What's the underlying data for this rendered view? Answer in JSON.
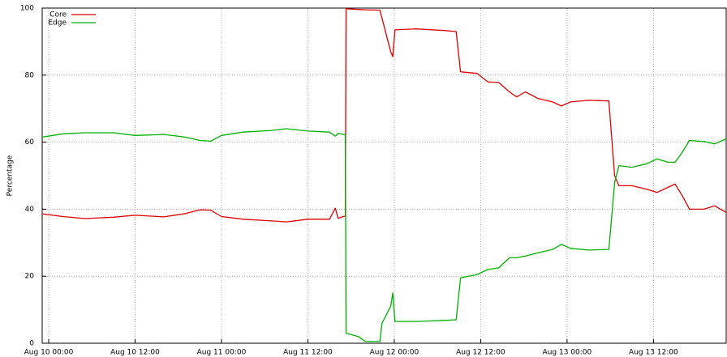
{
  "chart_data": {
    "type": "line",
    "ylabel": "Percentage",
    "x": [
      "Aug 9 23:06",
      "Aug 10 02:00",
      "Aug 10 05:00",
      "Aug 10 09:00",
      "Aug 10 12:00",
      "Aug 10 16:00",
      "Aug 10 19:00",
      "Aug 10 21:00",
      "Aug 10 22:30",
      "Aug 11 00:00",
      "Aug 11 03:00",
      "Aug 11 07:00",
      "Aug 11 09:00",
      "Aug 11 12:00",
      "Aug 11 15:00",
      "Aug 11 15:48",
      "Aug 11 16:12",
      "Aug 11 17:12",
      "Aug 11 17:18",
      "Aug 11 19:00",
      "Aug 11 20:00",
      "Aug 11 22:00",
      "Aug 11 22:18",
      "Aug 11 23:30",
      "Aug 11 23:48",
      "Aug 12 00:06",
      "Aug 12 03:00",
      "Aug 12 07:00",
      "Aug 12 08:36",
      "Aug 12 09:12",
      "Aug 12 11:30",
      "Aug 12 13:00",
      "Aug 12 14:30",
      "Aug 12 16:00",
      "Aug 12 17:00",
      "Aug 12 18:12",
      "Aug 12 20:00",
      "Aug 12 22:00",
      "Aug 12 23:12",
      "Aug 13 00:30",
      "Aug 13 03:00",
      "Aug 13 05:48",
      "Aug 13 06:36",
      "Aug 13 07:12",
      "Aug 13 09:00",
      "Aug 13 11:00",
      "Aug 13 12:30",
      "Aug 13 14:00",
      "Aug 13 15:00",
      "Aug 13 16:00",
      "Aug 13 17:00",
      "Aug 13 19:00",
      "Aug 13 20:30",
      "Aug 13 22:06"
    ],
    "series": [
      {
        "name": "Core",
        "color": "#e00000",
        "values": [
          38.6,
          37.8,
          37.2,
          37.6,
          38.2,
          37.7,
          38.7,
          39.8,
          39.7,
          37.8,
          37.0,
          36.5,
          36.2,
          37.0,
          37.0,
          40.3,
          37.3,
          38.0,
          99.8,
          99.6,
          99.5,
          99.4,
          97,
          87,
          85.5,
          93.5,
          93.8,
          93.3,
          93,
          81,
          80.5,
          78,
          77.8,
          75,
          73.5,
          75,
          73,
          72,
          70.8,
          72,
          72.5,
          72.3,
          50,
          47,
          47,
          46,
          45,
          46.5,
          47.5,
          44,
          40,
          40,
          41,
          39
        ]
      },
      {
        "name": "Edge",
        "color": "#00b000",
        "values": [
          61.5,
          62.5,
          62.8,
          62.8,
          62.0,
          62.3,
          61.5,
          60.5,
          60.3,
          62.0,
          63.0,
          63.5,
          64.0,
          63.3,
          63.0,
          61.8,
          62.6,
          62.2,
          3.0,
          2,
          0.5,
          0.5,
          6,
          11,
          15,
          6.5,
          6.5,
          6.8,
          7,
          19.5,
          20.5,
          22,
          22.5,
          25.5,
          25.5,
          26,
          27,
          28,
          29.5,
          28.3,
          27.8,
          28,
          48,
          53,
          52.5,
          53.5,
          55,
          54,
          54,
          57,
          60.5,
          60.2,
          59.5,
          61
        ]
      }
    ],
    "xlim": [
      "Aug 9 23:06",
      "Aug 13 22:06"
    ],
    "xticks": [
      "Aug 10 00:00",
      "Aug 10 12:00",
      "Aug 11 00:00",
      "Aug 11 12:00",
      "Aug 12 00:00",
      "Aug 12 12:00",
      "Aug 13 00:00",
      "Aug 13 12:00"
    ],
    "ylim": [
      0,
      100
    ],
    "yticks": [
      0,
      20,
      40,
      60,
      80,
      100
    ],
    "grid": true,
    "legend": "top-left"
  }
}
